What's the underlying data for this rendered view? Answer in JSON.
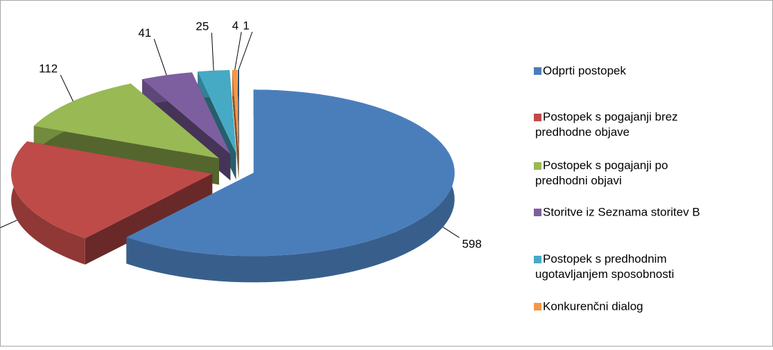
{
  "chart_data": {
    "type": "pie",
    "categories": [
      "Odprti postopek",
      "Postopek s pogajanji brez predhodne objave",
      "Postopek s pogajanji po predhodni objavi",
      "Storitve iz Seznama storitev B",
      "Postopek s predhodnim ugotavljanjem sposobnosti",
      "Konkurenčni dialog",
      null
    ],
    "values": [
      598,
      201,
      112,
      41,
      25,
      4,
      1
    ],
    "colors": [
      "#4a7ebb",
      "#be4b48",
      "#98b954",
      "#7d5fa0",
      "#46aac5",
      "#f79646",
      "#2c4d75"
    ],
    "legend": "right"
  }
}
